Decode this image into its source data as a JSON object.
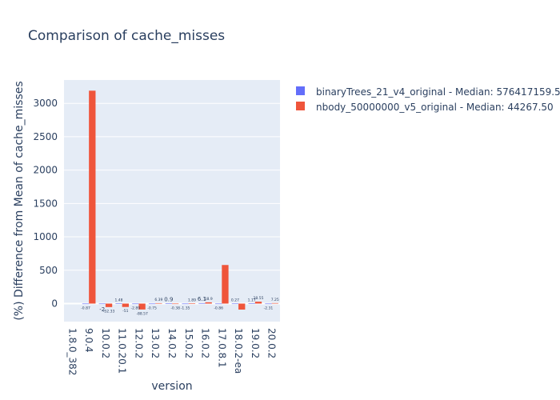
{
  "chart_data": {
    "type": "bar",
    "title": "Comparison of cache_misses",
    "xlabel": "version",
    "ylabel": "(%) Difference from Mean of cache_misses",
    "categories": [
      "1.8.0_382",
      "9.0.4",
      "10.0.2",
      "11.0.20.1",
      "12.0.2",
      "13.0.2",
      "14.0.2",
      "15.0.2",
      "16.0.2",
      "17.0.8.1",
      "18.0.2-ea",
      "19.0.2",
      "20.0.2"
    ],
    "y_ticks": [
      0,
      500,
      1000,
      1500,
      2000,
      2500,
      3000
    ],
    "ylim": [
      -270,
      3350
    ],
    "grid": true,
    "legend_position": "top-right",
    "series": [
      {
        "name": "binaryTrees_21_v4_original - Median: 576417159.50",
        "color": "#636efa",
        "values": [
          null,
          -0.87,
          -2,
          1.48,
          -2.89,
          -0.75,
          0.9,
          -1.35,
          6.1,
          -0.86,
          0.27,
          1.17,
          -2.31
        ],
        "labels": [
          "",
          "-0.87",
          "-2",
          "1.48",
          "-2.89",
          "-0.75",
          "0.9",
          "-1.35",
          "6.1",
          "-0.86",
          "0.27",
          "1.17",
          "-2.31"
        ]
      },
      {
        "name": "nbody_50000000_v5_original - Median: 44267.50",
        "color": "#ef553b",
        "values": [
          null,
          3190,
          -52.33,
          -51,
          -88.57,
          6.39,
          -0.38,
          1.89,
          18.9,
          578,
          -90,
          28.55,
          7.25
        ],
        "labels": [
          "",
          "",
          "-52.33",
          "-51",
          "-88.57",
          "6.39",
          "-0.38",
          "1.89",
          "18.9",
          "",
          "",
          "28.55",
          "7.25"
        ]
      }
    ]
  }
}
